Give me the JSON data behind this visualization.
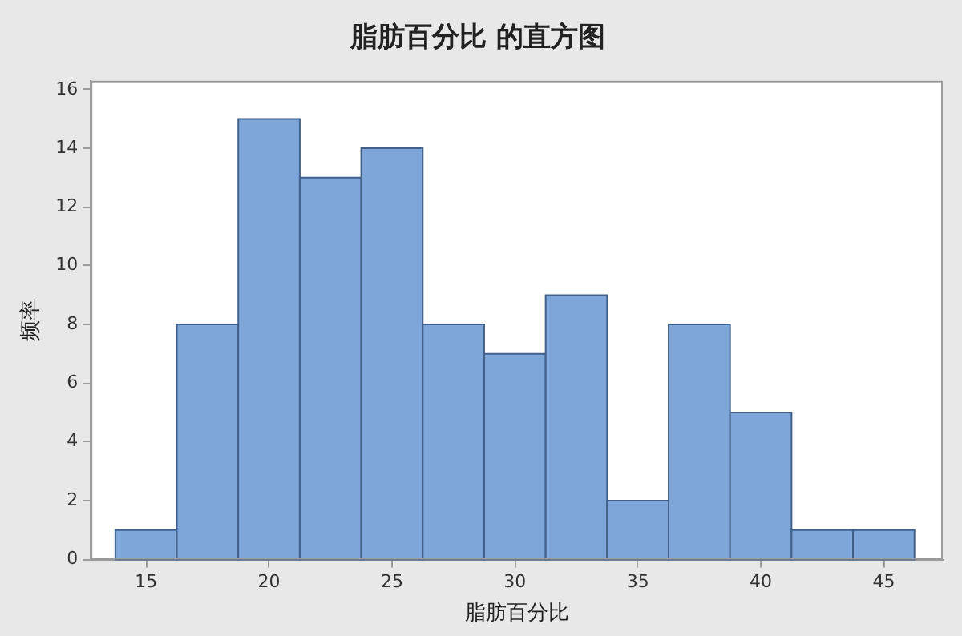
{
  "chart_data": {
    "type": "histogram",
    "title": "脂肪百分比 的直方图",
    "xlabel": "脂肪百分比",
    "ylabel": "频率",
    "bins": [
      13.75,
      16.25,
      18.75,
      21.25,
      23.75,
      26.25,
      28.75,
      31.25,
      33.75,
      36.25,
      38.75,
      41.25,
      43.75,
      46.25
    ],
    "values": [
      1,
      8,
      15,
      13,
      14,
      8,
      7,
      9,
      2,
      8,
      5,
      1,
      1
    ],
    "color": "#7ea6d8",
    "xlim": [
      12.75,
      47.4
    ],
    "xticks": [
      15,
      20,
      25,
      30,
      35,
      40,
      45
    ],
    "ylim": [
      0,
      16.3
    ],
    "yticks": [
      0,
      2,
      4,
      6,
      8,
      10,
      12,
      14,
      16
    ],
    "grid": false,
    "legend": false
  }
}
